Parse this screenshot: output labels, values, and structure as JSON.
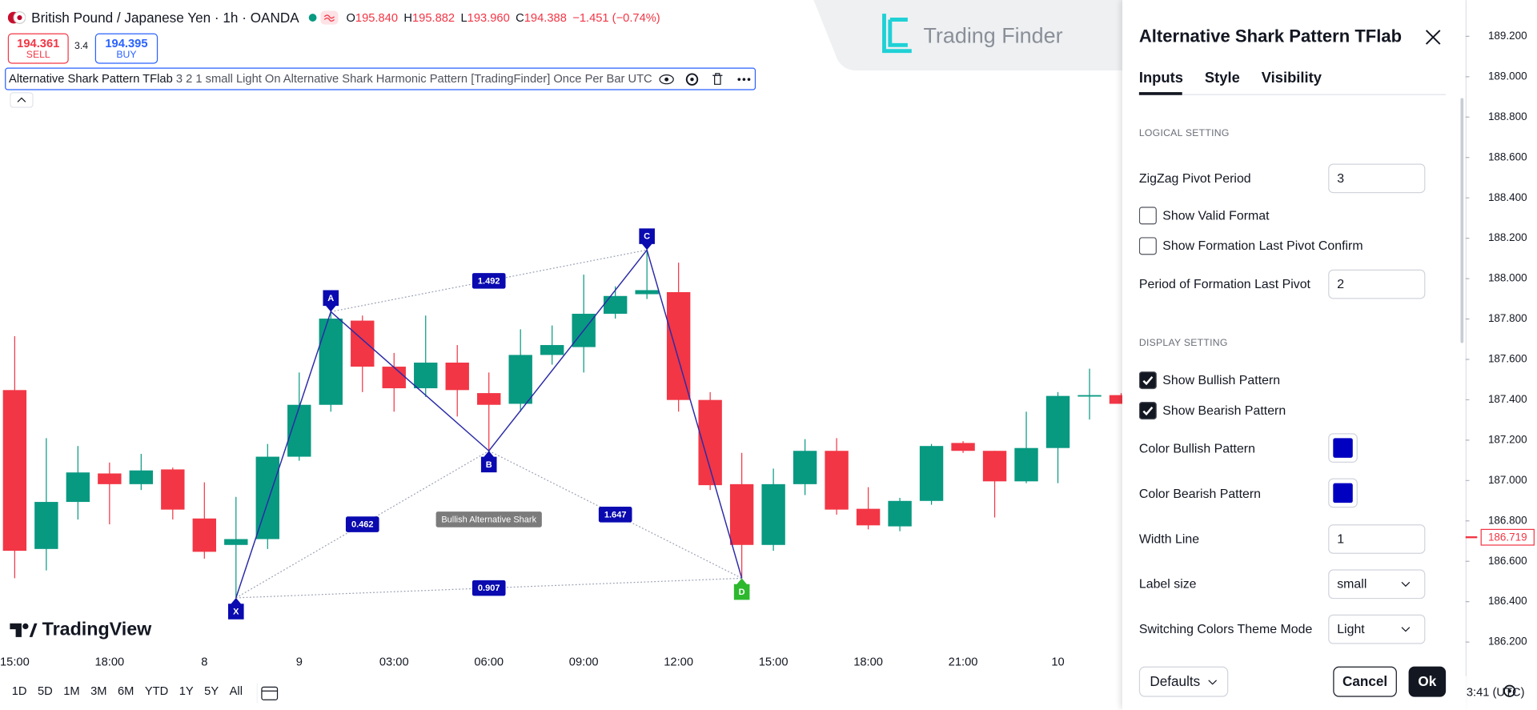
{
  "header": {
    "symbol": "British Pound / Japanese Yen · 1h · OANDA",
    "ohlc": [
      {
        "label": "O",
        "value": "195.840"
      },
      {
        "label": "H",
        "value": "195.882"
      },
      {
        "label": "L",
        "value": "193.960"
      },
      {
        "label": "C",
        "value": "194.388"
      }
    ],
    "change": "−1.451 (−0.74%)"
  },
  "trade": {
    "sell_price": "194.361",
    "sell": "SELL",
    "spread": "3.4",
    "buy_price": "194.395",
    "buy": "BUY"
  },
  "indicator": {
    "name": "Alternative Shark Pattern TFlab",
    "settings": "3 2 1 small Light On Alternative Shark Harmonic Pattern [TradingFinder] Once Per Bar UTC"
  },
  "watermark": "Trading Finder",
  "logo": "TradingView",
  "chart": {
    "type": "candlestick",
    "up_color": "#089981",
    "down_color": "#f23645",
    "ylim": [
      186.176,
      189.38
    ],
    "yticks": [
      {
        "value": 189.2,
        "label": "189.200"
      },
      {
        "value": 189.0,
        "label": "189.000"
      },
      {
        "value": 188.8,
        "label": "188.800"
      },
      {
        "value": 188.6,
        "label": "188.600"
      },
      {
        "value": 188.4,
        "label": "188.400"
      },
      {
        "value": 188.2,
        "label": "188.200"
      },
      {
        "value": 188.0,
        "label": "188.000"
      },
      {
        "value": 187.8,
        "label": "187.800"
      },
      {
        "value": 187.6,
        "label": "187.600"
      },
      {
        "value": 187.4,
        "label": "187.400"
      },
      {
        "value": 187.2,
        "label": "187.200"
      },
      {
        "value": 187.0,
        "label": "187.000"
      },
      {
        "value": 186.8,
        "label": "186.800"
      },
      {
        "value": 186.6,
        "label": "186.600"
      },
      {
        "value": 186.4,
        "label": "186.400"
      },
      {
        "value": 186.2,
        "label": "186.200"
      }
    ],
    "last_price": 186.719,
    "categories": [
      "15:00",
      null,
      null,
      "18:00",
      null,
      null,
      "8",
      null,
      null,
      "9",
      null,
      null,
      "03:00",
      null,
      null,
      "06:00",
      null,
      null,
      "09:00",
      null,
      null,
      "12:00",
      null,
      null,
      "15:00",
      null,
      null,
      "18:00",
      null,
      null,
      "21:00",
      null,
      null,
      "10",
      null,
      null
    ],
    "candles": [
      {
        "o": 187.448,
        "h": 187.715,
        "l": 186.516,
        "c": 186.652
      },
      {
        "o": 186.661,
        "h": 187.21,
        "l": 186.555,
        "c": 186.894
      },
      {
        "o": 186.894,
        "h": 187.171,
        "l": 186.807,
        "c": 187.04
      },
      {
        "o": 187.035,
        "h": 187.089,
        "l": 186.783,
        "c": 186.982
      },
      {
        "o": 186.982,
        "h": 187.132,
        "l": 186.953,
        "c": 187.05
      },
      {
        "o": 187.055,
        "h": 187.064,
        "l": 186.807,
        "c": 186.856
      },
      {
        "o": 186.812,
        "h": 186.991,
        "l": 186.613,
        "c": 186.647
      },
      {
        "o": 186.681,
        "h": 186.919,
        "l": 186.419,
        "c": 186.71
      },
      {
        "o": 186.71,
        "h": 187.181,
        "l": 186.661,
        "c": 187.118
      },
      {
        "o": 187.118,
        "h": 187.535,
        "l": 187.098,
        "c": 187.375
      },
      {
        "o": 187.375,
        "h": 187.836,
        "l": 187.341,
        "c": 187.802
      },
      {
        "o": 187.792,
        "h": 187.817,
        "l": 187.438,
        "c": 187.564
      },
      {
        "o": 187.564,
        "h": 187.632,
        "l": 187.341,
        "c": 187.457
      },
      {
        "o": 187.457,
        "h": 187.817,
        "l": 187.414,
        "c": 187.584
      },
      {
        "o": 187.584,
        "h": 187.671,
        "l": 187.317,
        "c": 187.448
      },
      {
        "o": 187.433,
        "h": 187.535,
        "l": 187.147,
        "c": 187.375
      },
      {
        "o": 187.38,
        "h": 187.749,
        "l": 187.341,
        "c": 187.622
      },
      {
        "o": 187.622,
        "h": 187.768,
        "l": 187.574,
        "c": 187.671
      },
      {
        "o": 187.661,
        "h": 188.02,
        "l": 187.535,
        "c": 187.826
      },
      {
        "o": 187.826,
        "h": 187.962,
        "l": 187.802,
        "c": 187.914
      },
      {
        "o": 187.923,
        "h": 188.142,
        "l": 187.899,
        "c": 187.943
      },
      {
        "o": 187.933,
        "h": 188.079,
        "l": 187.341,
        "c": 187.399
      },
      {
        "o": 187.399,
        "h": 187.438,
        "l": 186.953,
        "c": 186.977
      },
      {
        "o": 186.982,
        "h": 187.137,
        "l": 186.516,
        "c": 186.681
      },
      {
        "o": 186.681,
        "h": 187.059,
        "l": 186.652,
        "c": 186.982
      },
      {
        "o": 186.982,
        "h": 187.205,
        "l": 186.928,
        "c": 187.147
      },
      {
        "o": 187.147,
        "h": 187.21,
        "l": 186.831,
        "c": 186.856
      },
      {
        "o": 186.86,
        "h": 186.967,
        "l": 186.758,
        "c": 186.778
      },
      {
        "o": 186.773,
        "h": 186.914,
        "l": 186.749,
        "c": 186.899
      },
      {
        "o": 186.899,
        "h": 187.181,
        "l": 186.88,
        "c": 187.171
      },
      {
        "o": 187.186,
        "h": 187.195,
        "l": 187.137,
        "c": 187.147
      },
      {
        "o": 187.147,
        "h": 187.147,
        "l": 186.817,
        "c": 186.996
      },
      {
        "o": 186.996,
        "h": 187.341,
        "l": 186.987,
        "c": 187.161
      },
      {
        "o": 187.161,
        "h": 187.438,
        "l": 186.987,
        "c": 187.419
      },
      {
        "o": 187.419,
        "h": 187.554,
        "l": 187.302,
        "c": 187.423
      },
      {
        "o": 187.423,
        "h": 187.433,
        "l": 187.38,
        "c": 187.38
      }
    ],
    "pattern": {
      "name": "Bullish Alternative Shark",
      "line_color": "#2a2aa8",
      "marker_color": "#0a0ab0",
      "end_color": "#2eb82e",
      "ratio_line_color": "#9aa0b4",
      "points": [
        {
          "label": "X",
          "x": 7,
          "y": 186.419
        },
        {
          "label": "A",
          "x": 10,
          "y": 187.836
        },
        {
          "label": "B",
          "x": 15,
          "y": 187.147
        },
        {
          "label": "C",
          "x": 20,
          "y": 188.142
        },
        {
          "label": "D",
          "x": 23,
          "y": 186.516
        }
      ],
      "ratios": [
        {
          "from": 1,
          "to": 3,
          "value": 1.492
        },
        {
          "from": 0,
          "to": 2,
          "value": 0.462
        },
        {
          "from": 2,
          "to": 4,
          "value": 1.647
        },
        {
          "from": 0,
          "to": 4,
          "value": 0.907
        }
      ]
    }
  },
  "toolbar": {
    "ranges": [
      "1D",
      "5D",
      "1M",
      "3M",
      "6M",
      "YTD",
      "1Y",
      "5Y",
      "All"
    ],
    "clock": "3:41 (UTC)"
  },
  "panel": {
    "title": "Alternative Shark Pattern TFlab",
    "tabs": [
      "Inputs",
      "Style",
      "Visibility"
    ],
    "sections": [
      {
        "heading": "LOGICAL SETTING",
        "fields": [
          {
            "label": "ZigZag Pivot Period",
            "input": "3"
          },
          {
            "label": "Show Valid Format",
            "checked": false
          },
          {
            "label": "Show Formation Last Pivot Confirm",
            "checked": false
          },
          {
            "label": "Period of Formation Last Pivot",
            "input": "2"
          }
        ]
      },
      {
        "heading": "DISPLAY SETTING",
        "fields": [
          {
            "label": "Show Bullish Pattern",
            "checked": true
          },
          {
            "label": "Show Bearish Pattern",
            "checked": true
          },
          {
            "label": "Color Bullish Pattern",
            "color": "#0000c0"
          },
          {
            "label": "Color Bearish Pattern",
            "color": "#0000c0"
          },
          {
            "label": "Width Line",
            "input": "1"
          },
          {
            "label": "Label size",
            "select": "small"
          },
          {
            "label": "Switching Colors Theme Mode",
            "select": "Light"
          }
        ]
      }
    ],
    "footer": {
      "defaults": "Defaults",
      "cancel": "Cancel",
      "ok": "Ok"
    }
  }
}
